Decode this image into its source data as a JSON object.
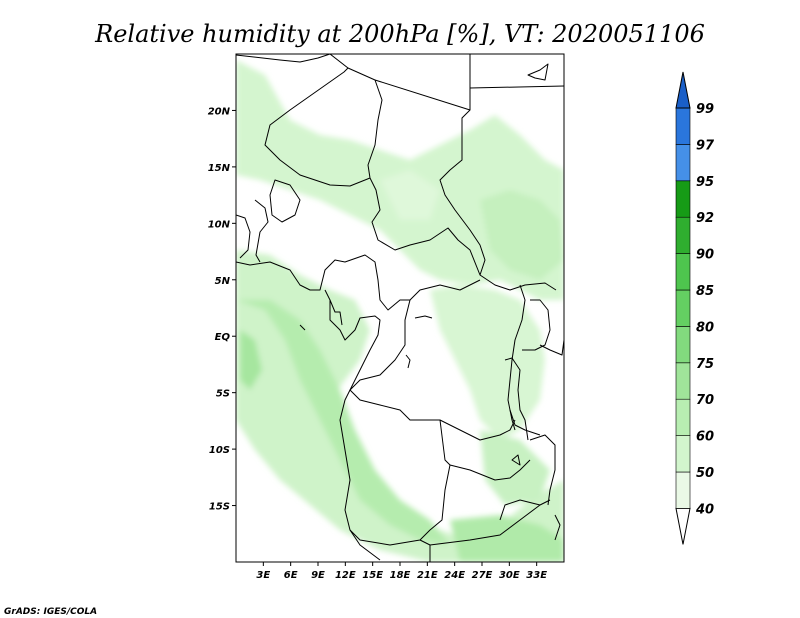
{
  "title": "Relative humidity at 200hPa [%], VT: 2020051106",
  "credit": "GrADS: IGES/COLA",
  "map": {
    "lon_range": [
      0,
      36
    ],
    "lat_range": [
      -20,
      25
    ],
    "x_ticks": [
      {
        "value": 3,
        "label": "3E"
      },
      {
        "value": 6,
        "label": "6E"
      },
      {
        "value": 9,
        "label": "9E"
      },
      {
        "value": 12,
        "label": "12E"
      },
      {
        "value": 15,
        "label": "15E"
      },
      {
        "value": 18,
        "label": "18E"
      },
      {
        "value": 21,
        "label": "21E"
      },
      {
        "value": 24,
        "label": "24E"
      },
      {
        "value": 27,
        "label": "27E"
      },
      {
        "value": 30,
        "label": "30E"
      },
      {
        "value": 33,
        "label": "33E"
      }
    ],
    "y_ticks": [
      {
        "value": 20,
        "label": "20N"
      },
      {
        "value": 15,
        "label": "15N"
      },
      {
        "value": 10,
        "label": "10N"
      },
      {
        "value": 5,
        "label": "5N"
      },
      {
        "value": 0,
        "label": "EQ"
      },
      {
        "value": -5,
        "label": "5S"
      },
      {
        "value": -10,
        "label": "10S"
      },
      {
        "value": -15,
        "label": "15S"
      }
    ]
  },
  "colorbar": {
    "levels": [
      "40",
      "50",
      "60",
      "70",
      "75",
      "80",
      "85",
      "90",
      "92",
      "95",
      "97",
      "99"
    ],
    "colors": [
      "#eaf9e6",
      "#d2f5cd",
      "#b8eeb2",
      "#a0e49a",
      "#82da7e",
      "#64cf62",
      "#4ec54e",
      "#2fae2f",
      "#169b16",
      "#4590e8",
      "#2a76dc",
      "#1a5fc8"
    ]
  }
}
